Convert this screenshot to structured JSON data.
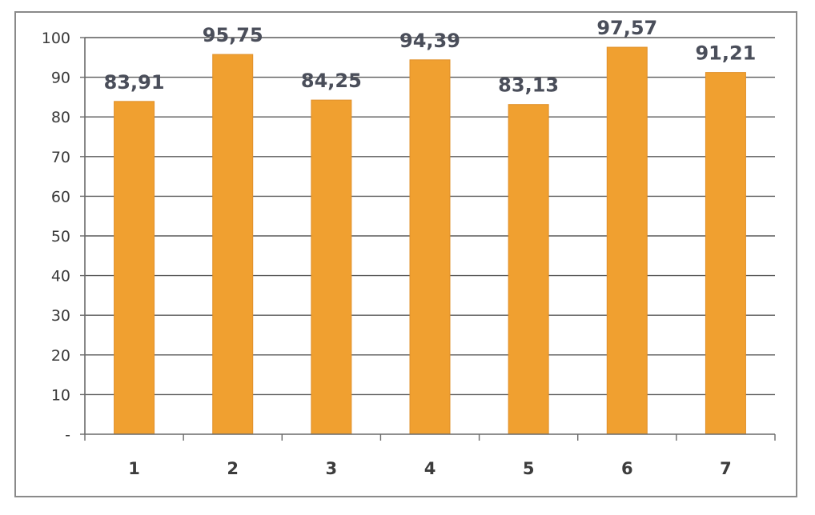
{
  "chart_data": {
    "type": "bar",
    "categories": [
      "1",
      "2",
      "3",
      "4",
      "5",
      "6",
      "7"
    ],
    "values": [
      83.91,
      95.75,
      84.25,
      94.39,
      83.13,
      97.57,
      91.21
    ],
    "data_labels": [
      "83,91",
      "95,75",
      "84,25",
      "94,39",
      "83,13",
      "97,57",
      "91,21"
    ],
    "title": "",
    "xlabel": "",
    "ylabel": "",
    "ylim": [
      0,
      100
    ],
    "yticks": [
      0,
      10,
      20,
      30,
      40,
      50,
      60,
      70,
      80,
      90,
      100
    ],
    "ytick_labels": [
      "-",
      "10",
      "20",
      "30",
      "40",
      "50",
      "60",
      "70",
      "80",
      "90",
      "100"
    ],
    "grid": true,
    "legend": "none",
    "bar_color": "#f0a030",
    "bar_edge_color": "#e0902a"
  }
}
